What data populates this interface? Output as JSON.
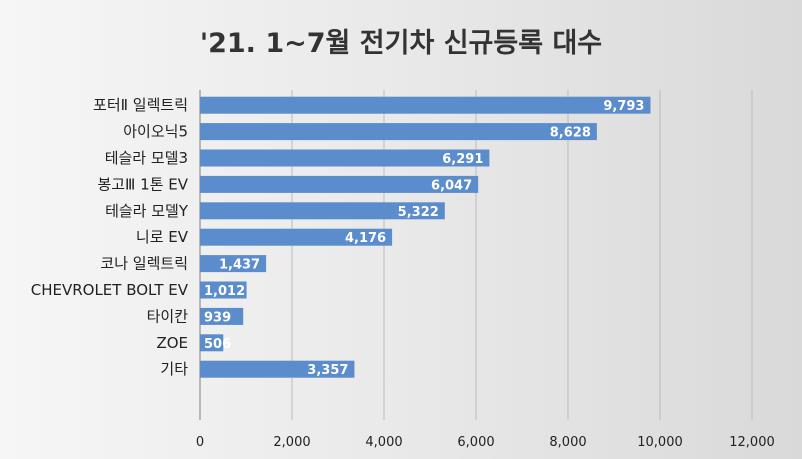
{
  "chart_data": {
    "type": "bar",
    "orientation": "horizontal",
    "title": "'21. 1~7월 전기차 신규등록 대수",
    "xlabel": "",
    "ylabel": "",
    "categories": [
      "포터Ⅱ 일렉트릭",
      "아이오닉5",
      "테슬라 모델3",
      "봉고Ⅲ 1톤 EV",
      "테슬라 모델Y",
      "니로 EV",
      "코나 일렉트릭",
      "CHEVROLET BOLT EV",
      "타이칸",
      "ZOE",
      "기타"
    ],
    "values": [
      9793,
      8628,
      6291,
      6047,
      5322,
      4176,
      1437,
      1012,
      939,
      506,
      3357
    ],
    "value_labels": [
      "9,793",
      "8,628",
      "6,291",
      "6,047",
      "5,322",
      "4,176",
      "1,437",
      "1,012",
      "939",
      "506",
      "3,357"
    ],
    "xlim": [
      0,
      12000
    ],
    "xticks": [
      0,
      2000,
      4000,
      6000,
      8000,
      10000,
      12000
    ],
    "xtick_labels": [
      "0",
      "2,000",
      "4,000",
      "6,000",
      "8,000",
      "10,000",
      "12,000"
    ],
    "grid": true,
    "legend": "none",
    "colors": {
      "bar": "#5b8ccc",
      "data_label": "#ffffff",
      "grid": "#bcbcbc"
    }
  }
}
